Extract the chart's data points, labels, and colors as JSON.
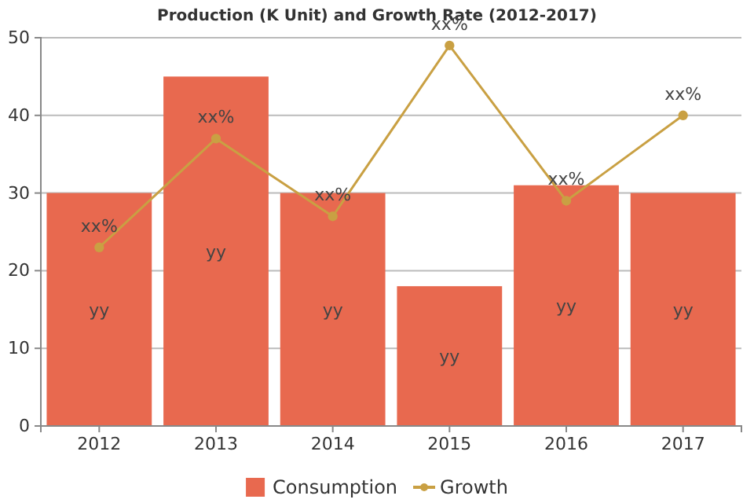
{
  "chart_data": {
    "type": "bar",
    "title": "Production (K Unit) and Growth Rate (2012-2017)",
    "categories": [
      "2012",
      "2013",
      "2014",
      "2015",
      "2016",
      "2017"
    ],
    "series": [
      {
        "name": "Consumption",
        "color": "#e8694f",
        "values": [
          30,
          45,
          30,
          18,
          31,
          30
        ],
        "value_labels": [
          "yy",
          "yy",
          "yy",
          "yy",
          "yy",
          "yy"
        ]
      },
      {
        "name": "Growth",
        "type": "line",
        "color": "#c9a043",
        "values": [
          23,
          37,
          27,
          49,
          29,
          40
        ],
        "value_labels": [
          "xx%",
          "xx%",
          "xx%",
          "xx%",
          "xx%",
          "xx%"
        ]
      }
    ],
    "ylim": [
      0,
      50
    ],
    "yticks": [
      0,
      10,
      20,
      30,
      40,
      50
    ],
    "grid": "y",
    "legend": "bottom",
    "marker": "circle"
  }
}
